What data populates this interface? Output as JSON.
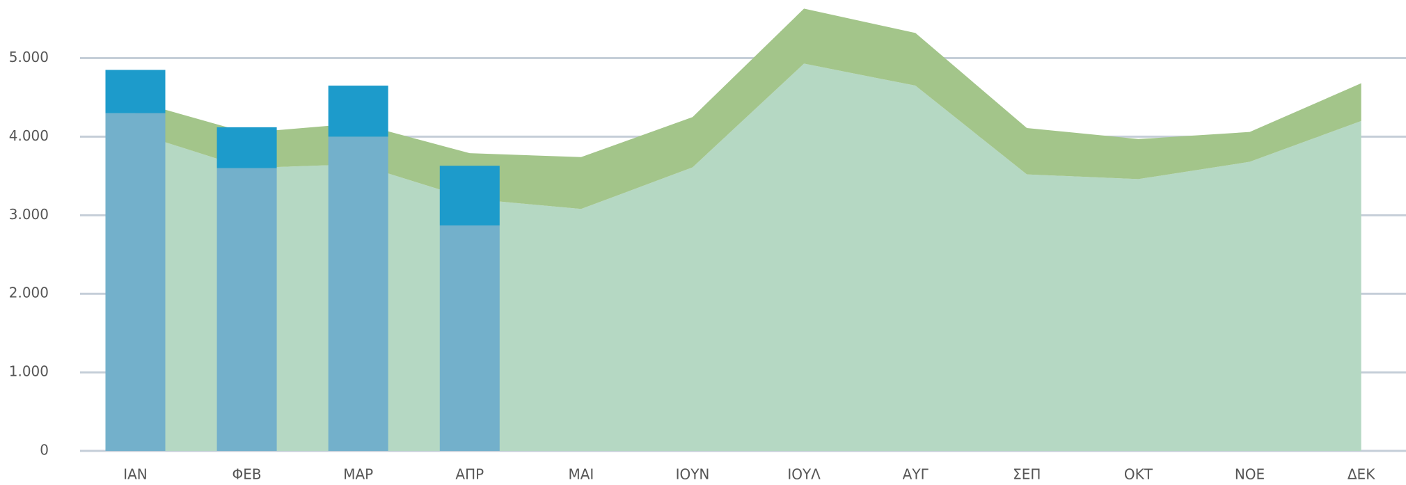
{
  "chart_data": {
    "type": "combo",
    "categories": [
      "ΙΑΝ",
      "ΦΕΒ",
      "ΜΑΡ",
      "ΑΠΡ",
      "ΜΑΙ",
      "ΙΟΥΝ",
      "ΙΟΥΛ",
      "ΑΥΓ",
      "ΣΕΠ",
      "ΟΚΤ",
      "ΝΟΕ",
      "ΔΕΚ"
    ],
    "series": [
      {
        "type": "area",
        "color": "#b5d8c3",
        "values": [
          4050,
          3600,
          3650,
          3210,
          3080,
          3610,
          4930,
          4650,
          3520,
          3460,
          3680,
          4200
        ]
      },
      {
        "type": "area",
        "color": "#a3c58a",
        "values": [
          400,
          450,
          520,
          580,
          660,
          640,
          700,
          670,
          590,
          510,
          380,
          480
        ]
      },
      {
        "type": "bar",
        "color": "#73b0cb",
        "values": [
          4300,
          3600,
          4000,
          2870,
          null,
          null,
          null,
          null,
          null,
          null,
          null,
          null
        ]
      },
      {
        "type": "bar",
        "color": "#1d9bcb",
        "values": [
          550,
          520,
          650,
          760,
          null,
          null,
          null,
          null,
          null,
          null,
          null,
          null
        ]
      }
    ],
    "ylim": [
      0,
      5700
    ],
    "yticks": [
      0,
      {
        "value": 1000,
        "label": "1.000"
      },
      {
        "value": 2000,
        "label": "2.000"
      },
      {
        "value": 3000,
        "label": "3.000"
      },
      {
        "value": 4000,
        "label": "4.000"
      },
      {
        "value": 5000,
        "label": "5.000"
      }
    ],
    "grid": true
  }
}
